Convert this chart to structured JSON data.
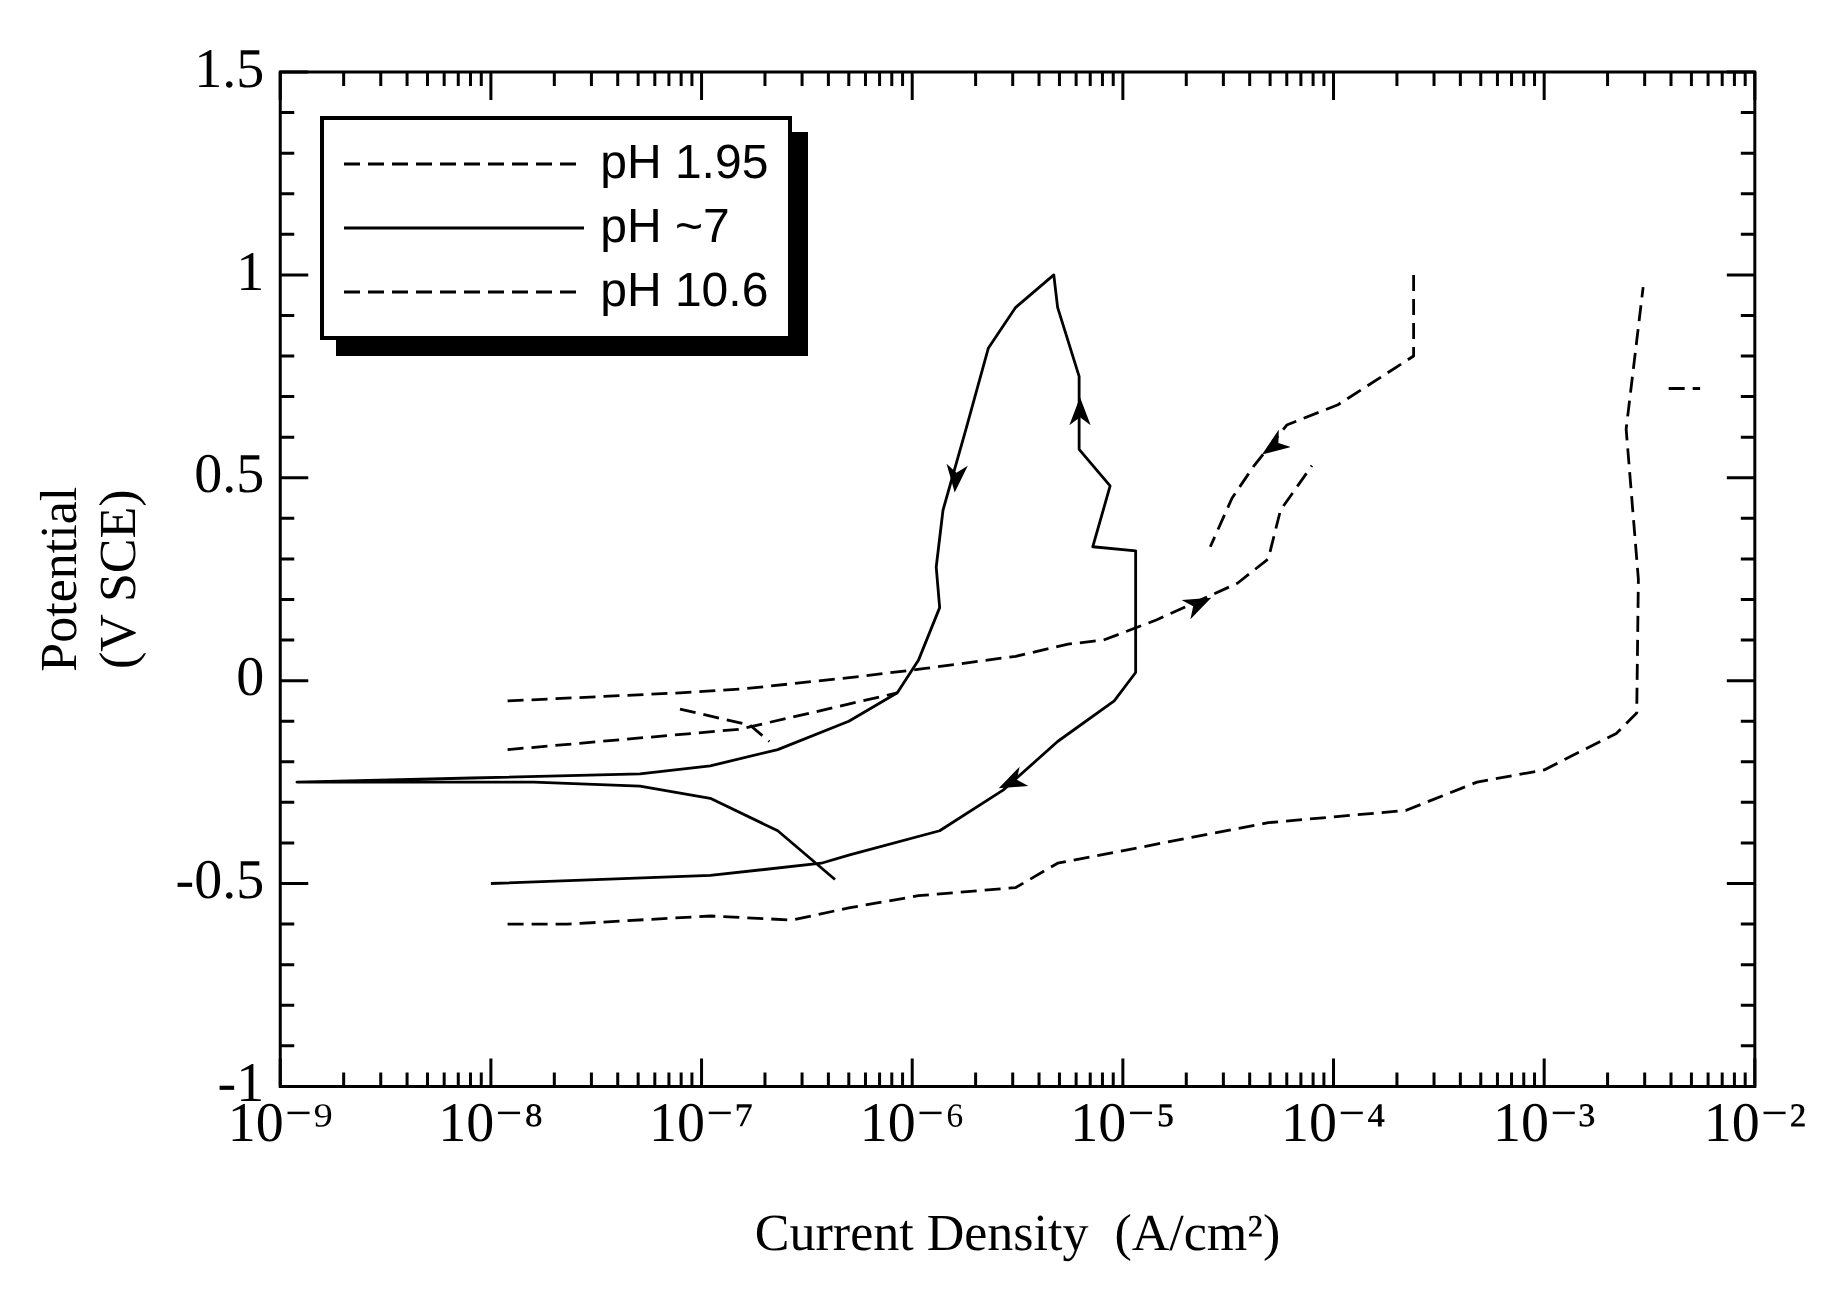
{
  "chart_data": {
    "type": "line",
    "xlabel": "Current Density  (A/cm²)",
    "ylabel": "Potential\n(V SCE)",
    "log": "x",
    "grid": false,
    "legend": "top left",
    "marker": "none",
    "xlim": [
      1e-09,
      0.01
    ],
    "ylim": [
      -1,
      1.5
    ],
    "xticks": [
      {
        "value": 1e-09,
        "label": "10⁻⁹"
      },
      {
        "value": 2e-09,
        "label": null
      },
      {
        "value": 3e-09,
        "label": null
      },
      {
        "value": 4e-09,
        "label": null
      },
      {
        "value": 5e-09,
        "label": null
      },
      {
        "value": 6e-09,
        "label": null
      },
      {
        "value": 7e-09,
        "label": null
      },
      {
        "value": 8e-09,
        "label": null
      },
      {
        "value": 9e-09,
        "label": null
      },
      {
        "value": 1e-08,
        "label": "10⁻⁸"
      },
      {
        "value": 2e-08,
        "label": null
      },
      {
        "value": 3e-08,
        "label": null
      },
      {
        "value": 4e-08,
        "label": null
      },
      {
        "value": 5e-08,
        "label": null
      },
      {
        "value": 6e-08,
        "label": null
      },
      {
        "value": 7e-08,
        "label": null
      },
      {
        "value": 8e-08,
        "label": null
      },
      {
        "value": 9e-08,
        "label": null
      },
      {
        "value": 1e-07,
        "label": "10⁻⁷"
      },
      {
        "value": 2e-07,
        "label": null
      },
      {
        "value": 3e-07,
        "label": null
      },
      {
        "value": 4e-07,
        "label": null
      },
      {
        "value": 5e-07,
        "label": null
      },
      {
        "value": 6e-07,
        "label": null
      },
      {
        "value": 7e-07,
        "label": null
      },
      {
        "value": 8e-07,
        "label": null
      },
      {
        "value": 9e-07,
        "label": null
      },
      {
        "value": 1e-06,
        "label": "10⁻⁶"
      },
      {
        "value": 2e-06,
        "label": null
      },
      {
        "value": 3e-06,
        "label": null
      },
      {
        "value": 4e-06,
        "label": null
      },
      {
        "value": 5e-06,
        "label": null
      },
      {
        "value": 6e-06,
        "label": null
      },
      {
        "value": 7e-06,
        "label": null
      },
      {
        "value": 8e-06,
        "label": null
      },
      {
        "value": 9e-06,
        "label": null
      },
      {
        "value": 1e-05,
        "label": "10⁻⁵"
      },
      {
        "value": 2e-05,
        "label": null
      },
      {
        "value": 3e-05,
        "label": null
      },
      {
        "value": 4e-05,
        "label": null
      },
      {
        "value": 5e-05,
        "label": null
      },
      {
        "value": 6e-05,
        "label": null
      },
      {
        "value": 7e-05,
        "label": null
      },
      {
        "value": 8e-05,
        "label": null
      },
      {
        "value": 9e-05,
        "label": null
      },
      {
        "value": 0.0001,
        "label": "10⁻⁴"
      },
      {
        "value": 0.0002,
        "label": null
      },
      {
        "value": 0.0003,
        "label": null
      },
      {
        "value": 0.0004,
        "label": null
      },
      {
        "value": 0.0005,
        "label": null
      },
      {
        "value": 0.0006,
        "label": null
      },
      {
        "value": 0.0007,
        "label": null
      },
      {
        "value": 0.0008,
        "label": null
      },
      {
        "value": 0.0009,
        "label": null
      },
      {
        "value": 0.001,
        "label": "10⁻³"
      },
      {
        "value": 0.002,
        "label": null
      },
      {
        "value": 0.003,
        "label": null
      },
      {
        "value": 0.004,
        "label": null
      },
      {
        "value": 0.005,
        "label": null
      },
      {
        "value": 0.006,
        "label": null
      },
      {
        "value": 0.007,
        "label": null
      },
      {
        "value": 0.008,
        "label": null
      },
      {
        "value": 0.009,
        "label": null
      },
      {
        "value": 0.01,
        "label": "10⁻²"
      }
    ],
    "yticks": [
      -1,
      {
        "value": -0.9,
        "label": null
      },
      {
        "value": -0.8,
        "label": null
      },
      {
        "value": -0.7,
        "label": null
      },
      {
        "value": -0.6,
        "label": null
      },
      -0.5,
      {
        "value": -0.4,
        "label": null
      },
      {
        "value": -0.3,
        "label": null
      },
      {
        "value": -0.2,
        "label": null
      },
      {
        "value": -0.1,
        "label": null
      },
      0,
      {
        "value": 0.1,
        "label": null
      },
      {
        "value": 0.2,
        "label": null
      },
      {
        "value": 0.3,
        "label": null
      },
      {
        "value": 0.4,
        "label": null
      },
      0.5,
      {
        "value": 0.6,
        "label": null
      },
      {
        "value": 0.7,
        "label": null
      },
      {
        "value": 0.8,
        "label": null
      },
      {
        "value": 0.9,
        "label": null
      },
      1,
      {
        "value": 1.1,
        "label": null
      },
      {
        "value": 1.2,
        "label": null
      },
      {
        "value": 1.3,
        "label": null
      },
      {
        "value": 1.4,
        "label": null
      },
      1.5
    ],
    "series": [
      {
        "name": "pH 1.95",
        "color": "#000000",
        "line_style": "dashed",
        "x": [
          1.2e-08,
          7.9e-08,
          1.6e-07,
          5.6e-07,
          1.15e-06,
          3.1e-06,
          5.5e-06,
          8.1e-06,
          1.45e-05,
          3.5e-05,
          4.9e-05,
          5.6e-05,
          7.9e-05,
          null,
          1.2e-08,
          1.5e-07,
          2.7e-07,
          8.5e-07,
          null,
          7.9e-08,
          1.7e-07,
          2.1e-07,
          null,
          0.00024,
          0.00024,
          0.00024,
          0.000105,
          6e-05,
          4.2e-05,
          3.3e-05,
          2.6e-05
        ],
        "values": [
          -0.05,
          -0.03,
          -0.02,
          0.01,
          0.03,
          0.06,
          0.09,
          0.1,
          0.15,
          0.24,
          0.3,
          0.42,
          0.53,
          null,
          -0.17,
          -0.12,
          -0.09,
          -0.03,
          null,
          -0.07,
          -0.11,
          -0.15,
          null,
          1.0,
          0.83,
          0.8,
          0.68,
          0.63,
          0.53,
          0.45,
          0.33
        ]
      },
      {
        "name": "pH ~7",
        "color": "#000000",
        "line_style": "solid",
        "x": [
          4.3e-07,
          2.3e-07,
          1.1e-07,
          5.1e-08,
          1.6e-08,
          1.2e-09,
          8.1e-09,
          5.1e-08,
          1.1e-07,
          2.3e-07,
          5e-07,
          8.5e-07,
          1.07e-06,
          1.35e-06,
          1.3e-06,
          1.4e-06,
          1.8e-06,
          2.3e-06,
          3.1e-06,
          4.7e-06,
          4.9e-06,
          6.2e-06,
          6.2e-06,
          8.7e-06,
          7.2e-06,
          1.15e-05,
          1.15e-05,
          9.1e-06,
          4.9e-06,
          2.7e-06,
          1.35e-06,
          5e-07,
          3.7e-07,
          1.1e-07,
          1e-08
        ],
        "values": [
          -0.49,
          -0.37,
          -0.29,
          -0.26,
          -0.25,
          -0.25,
          -0.24,
          -0.23,
          -0.21,
          -0.17,
          -0.1,
          -0.03,
          0.05,
          0.18,
          0.28,
          0.42,
          0.62,
          0.82,
          0.92,
          1.0,
          0.92,
          0.75,
          0.57,
          0.48,
          0.33,
          0.32,
          0.02,
          -0.05,
          -0.15,
          -0.27,
          -0.37,
          -0.43,
          -0.45,
          -0.48,
          -0.5
        ]
      },
      {
        "name": "pH 10.6",
        "color": "#000000",
        "line_style": "dashed",
        "x": [
          1.2e-08,
          2.3e-08,
          1.1e-07,
          2.7e-07,
          5e-07,
          1.07e-06,
          3.1e-06,
          4.9e-06,
          4.9e-05,
          0.00022,
          0.00048,
          0.001,
          0.0022,
          0.00275,
          0.0028,
          0.00245,
          0.00295,
          null,
          0.0039,
          0.0055
        ],
        "values": [
          -0.6,
          -0.6,
          -0.58,
          -0.59,
          -0.56,
          -0.53,
          -0.51,
          -0.45,
          -0.35,
          -0.32,
          -0.25,
          -0.22,
          -0.13,
          -0.08,
          0.25,
          0.62,
          0.97,
          null,
          0.72,
          0.72
        ]
      }
    ]
  }
}
